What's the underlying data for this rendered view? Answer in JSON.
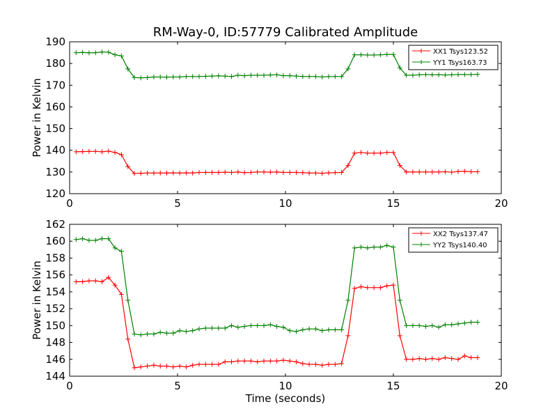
{
  "chart_data": [
    {
      "type": "line",
      "title": "RM-Way-0, ID:57779 Calibrated Amplitude",
      "xlabel": "",
      "ylabel": "Power in Kelvin",
      "xlim": [
        0,
        20
      ],
      "ylim": [
        120,
        190
      ],
      "xticks": [
        0,
        5,
        10,
        15,
        20
      ],
      "yticks": [
        120,
        130,
        140,
        150,
        160,
        170,
        180,
        190
      ],
      "legend": "top-right",
      "x": [
        0.3,
        0.6,
        0.9,
        1.2,
        1.5,
        1.8,
        2.1,
        2.4,
        2.7,
        3.0,
        3.3,
        3.6,
        3.9,
        4.2,
        4.5,
        4.8,
        5.1,
        5.4,
        5.7,
        6.0,
        6.3,
        6.6,
        6.9,
        7.2,
        7.5,
        7.8,
        8.1,
        8.4,
        8.7,
        9.0,
        9.3,
        9.6,
        9.9,
        10.2,
        10.5,
        10.8,
        11.1,
        11.4,
        11.7,
        12.0,
        12.3,
        12.6,
        12.9,
        13.2,
        13.5,
        13.8,
        14.1,
        14.4,
        14.7,
        15.0,
        15.3,
        15.6,
        15.9,
        16.2,
        16.5,
        16.8,
        17.1,
        17.4,
        17.7,
        18.0,
        18.3,
        18.6,
        18.9
      ],
      "series": [
        {
          "name": "XX1 Tsys123.52",
          "color": "#ff0000",
          "values": [
            139.3,
            139.4,
            139.5,
            139.5,
            139.3,
            139.6,
            139.0,
            138.0,
            132.5,
            129.3,
            129.4,
            129.5,
            129.5,
            129.5,
            129.5,
            129.6,
            129.5,
            129.6,
            129.5,
            129.8,
            129.8,
            129.8,
            129.8,
            129.9,
            129.8,
            130.0,
            129.7,
            129.8,
            130.0,
            130.0,
            129.9,
            130.0,
            129.8,
            129.8,
            129.8,
            129.7,
            129.5,
            129.5,
            129.4,
            129.6,
            129.7,
            129.8,
            133.0,
            138.7,
            139.0,
            138.7,
            138.7,
            138.7,
            139.0,
            139.0,
            133.0,
            130.0,
            130.0,
            130.0,
            130.0,
            130.0,
            130.0,
            130.1,
            129.9,
            130.2,
            130.3,
            130.1,
            130.1
          ]
        },
        {
          "name": "YY1 Tsys163.73",
          "color": "#008000",
          "values": [
            185.0,
            185.1,
            184.9,
            185.0,
            185.3,
            185.2,
            184.0,
            183.5,
            177.5,
            173.5,
            173.4,
            173.5,
            173.8,
            173.8,
            173.7,
            173.8,
            173.8,
            174.0,
            174.0,
            174.0,
            174.1,
            174.2,
            174.3,
            174.2,
            174.0,
            174.6,
            174.4,
            174.6,
            174.6,
            174.6,
            174.7,
            174.8,
            174.4,
            174.4,
            174.2,
            174.0,
            174.0,
            174.0,
            173.8,
            174.0,
            174.0,
            174.0,
            177.5,
            184.0,
            184.0,
            183.9,
            183.9,
            184.0,
            184.2,
            184.2,
            178.0,
            174.6,
            174.6,
            174.8,
            174.9,
            174.8,
            174.8,
            174.7,
            174.8,
            174.9,
            174.9,
            174.9,
            175.0
          ]
        }
      ]
    },
    {
      "type": "line",
      "title": "",
      "xlabel": "Time (seconds)",
      "ylabel": "Power in Kelvin",
      "xlim": [
        0,
        20
      ],
      "ylim": [
        144,
        162
      ],
      "xticks": [
        0,
        5,
        10,
        15,
        20
      ],
      "yticks": [
        144,
        146,
        148,
        150,
        152,
        154,
        156,
        158,
        160,
        162
      ],
      "legend": "top-right",
      "x": [
        0.3,
        0.6,
        0.9,
        1.2,
        1.5,
        1.8,
        2.1,
        2.4,
        2.7,
        3.0,
        3.3,
        3.6,
        3.9,
        4.2,
        4.5,
        4.8,
        5.1,
        5.4,
        5.7,
        6.0,
        6.3,
        6.6,
        6.9,
        7.2,
        7.5,
        7.8,
        8.1,
        8.4,
        8.7,
        9.0,
        9.3,
        9.6,
        9.9,
        10.2,
        10.5,
        10.8,
        11.1,
        11.4,
        11.7,
        12.0,
        12.3,
        12.6,
        12.9,
        13.2,
        13.5,
        13.8,
        14.1,
        14.4,
        14.7,
        15.0,
        15.3,
        15.6,
        15.9,
        16.2,
        16.5,
        16.8,
        17.1,
        17.4,
        17.7,
        18.0,
        18.3,
        18.6,
        18.9
      ],
      "series": [
        {
          "name": "XX2 Tsys137.47",
          "color": "#ff0000",
          "values": [
            155.2,
            155.2,
            155.3,
            155.3,
            155.2,
            155.7,
            154.8,
            153.7,
            148.4,
            145.0,
            145.1,
            145.2,
            145.3,
            145.2,
            145.2,
            145.1,
            145.2,
            145.1,
            145.3,
            145.4,
            145.4,
            145.4,
            145.4,
            145.7,
            145.7,
            145.8,
            145.8,
            145.8,
            145.7,
            145.8,
            145.8,
            145.8,
            145.9,
            145.8,
            145.7,
            145.5,
            145.4,
            145.4,
            145.3,
            145.4,
            145.4,
            145.5,
            148.8,
            154.4,
            154.6,
            154.5,
            154.5,
            154.5,
            154.7,
            154.8,
            148.8,
            146.0,
            146.0,
            146.1,
            146.0,
            146.1,
            146.0,
            146.2,
            146.1,
            146.0,
            146.4,
            146.2,
            146.2
          ]
        },
        {
          "name": "YY2 Tsys140.40",
          "color": "#008000",
          "values": [
            160.2,
            160.3,
            160.1,
            160.1,
            160.3,
            160.3,
            159.2,
            158.8,
            153.0,
            149.0,
            148.9,
            149.0,
            149.0,
            149.2,
            149.1,
            149.1,
            149.4,
            149.3,
            149.4,
            149.6,
            149.7,
            149.7,
            149.7,
            149.7,
            150.0,
            149.8,
            149.9,
            150.0,
            150.0,
            150.0,
            150.1,
            149.9,
            149.8,
            149.4,
            149.3,
            149.5,
            149.6,
            149.6,
            149.4,
            149.5,
            149.5,
            149.5,
            153.0,
            159.2,
            159.3,
            159.2,
            159.3,
            159.3,
            159.5,
            159.3,
            153.0,
            150.0,
            150.0,
            150.0,
            149.9,
            150.0,
            149.8,
            150.1,
            150.1,
            150.2,
            150.3,
            150.4,
            150.4
          ]
        }
      ]
    }
  ]
}
